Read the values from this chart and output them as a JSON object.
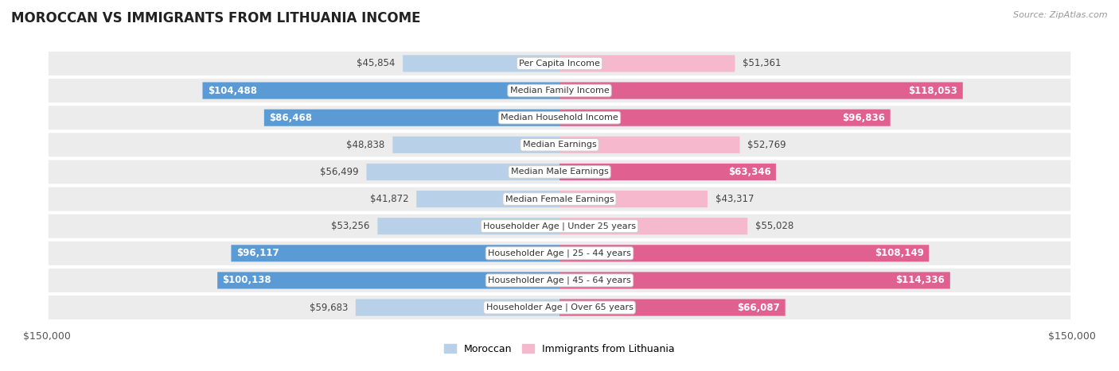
{
  "title": "MOROCCAN VS IMMIGRANTS FROM LITHUANIA INCOME",
  "source": "Source: ZipAtlas.com",
  "categories": [
    "Per Capita Income",
    "Median Family Income",
    "Median Household Income",
    "Median Earnings",
    "Median Male Earnings",
    "Median Female Earnings",
    "Householder Age | Under 25 years",
    "Householder Age | 25 - 44 years",
    "Householder Age | 45 - 64 years",
    "Householder Age | Over 65 years"
  ],
  "moroccan_values": [
    45854,
    104488,
    86468,
    48838,
    56499,
    41872,
    53256,
    96117,
    100138,
    59683
  ],
  "lithuania_values": [
    51361,
    118053,
    96836,
    52769,
    63346,
    43317,
    55028,
    108149,
    114336,
    66087
  ],
  "moroccan_labels": [
    "$45,854",
    "$104,488",
    "$86,468",
    "$48,838",
    "$56,499",
    "$41,872",
    "$53,256",
    "$96,117",
    "$100,138",
    "$59,683"
  ],
  "lithuania_labels": [
    "$51,361",
    "$118,053",
    "$96,836",
    "$52,769",
    "$63,346",
    "$43,317",
    "$55,028",
    "$108,149",
    "$114,336",
    "$66,087"
  ],
  "moroccan_light_color": "#b8d0e8",
  "moroccan_dark_color": "#5b9bd5",
  "lithuania_light_color": "#f5b8cc",
  "lithuania_dark_color": "#e06090",
  "max_value": 150000,
  "inside_threshold": 60000,
  "label_fontsize": 8.5,
  "title_fontsize": 12,
  "legend_moroccan": "Moroccan",
  "legend_lithuania": "Immigrants from Lithuania"
}
